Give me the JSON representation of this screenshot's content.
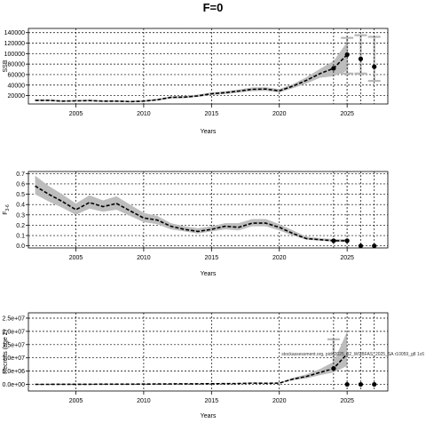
{
  "title": "F=0",
  "watermark": "stockassessment.org, pid=2025_02_WGBFAS_2025_SA r10059_g8 1c6",
  "colors": {
    "band": "#bdbdbd",
    "line": "#000000",
    "future_bar": "#b8b8b8",
    "grid": "#000000"
  },
  "chart_data": [
    {
      "type": "line",
      "name": "ssb-panel",
      "xlabel": "Years",
      "ylabel": "SSB",
      "xlim": [
        2001.5,
        2028
      ],
      "ylim": [
        4000,
        148000
      ],
      "xticks": [
        2005,
        2010,
        2015,
        2020,
        2025
      ],
      "yticks": [
        20000,
        40000,
        60000,
        80000,
        100000,
        120000,
        140000
      ],
      "ytick_labels": [
        "20000",
        "40000",
        "60000",
        "80000",
        "100000",
        "120000",
        "140000"
      ],
      "years": [
        2002,
        2003,
        2004,
        2005,
        2006,
        2007,
        2008,
        2009,
        2010,
        2011,
        2012,
        2013,
        2014,
        2015,
        2016,
        2017,
        2018,
        2019,
        2020,
        2021,
        2022,
        2023,
        2024,
        2025
      ],
      "estimate": [
        11000,
        11000,
        9500,
        10000,
        10500,
        9500,
        9500,
        8500,
        9500,
        12000,
        16500,
        17000,
        19500,
        23500,
        25500,
        28500,
        32000,
        32500,
        29000,
        38000,
        49000,
        62000,
        72000,
        98000
      ],
      "lower": [
        9500,
        9500,
        8000,
        8500,
        9000,
        8000,
        8000,
        7200,
        8000,
        10500,
        14500,
        15000,
        17500,
        21000,
        23000,
        25500,
        28500,
        29000,
        26000,
        34000,
        43000,
        54000,
        57000,
        67000
      ],
      "upper": [
        12500,
        12500,
        11000,
        11500,
        12000,
        11000,
        11000,
        10000,
        11000,
        13800,
        18500,
        19200,
        22000,
        26000,
        28200,
        31500,
        35500,
        36000,
        32500,
        42000,
        55000,
        71000,
        86000,
        122000
      ],
      "points": [
        {
          "x": 2024,
          "y": 72000
        },
        {
          "x": 2025,
          "y": 98000
        },
        {
          "x": 2026,
          "y": 90000
        },
        {
          "x": 2027,
          "y": 75000
        }
      ],
      "future": [
        {
          "x": 2025,
          "low": 62000,
          "high": 130000
        },
        {
          "x": 2026,
          "low": 62000,
          "high": 135000
        },
        {
          "x": 2027,
          "low": 48000,
          "high": 132000
        }
      ]
    },
    {
      "type": "line",
      "name": "f-panel",
      "xlabel": "Years",
      "ylabel": "F3-6",
      "ylabel_main": "F",
      "ylabel_sub": "3-6",
      "xlim": [
        2001.5,
        2028
      ],
      "ylim": [
        -0.02,
        0.72
      ],
      "xticks": [
        2005,
        2010,
        2015,
        2020,
        2025
      ],
      "yticks": [
        0.0,
        0.1,
        0.2,
        0.3,
        0.4,
        0.5,
        0.6,
        0.7
      ],
      "ytick_labels": [
        "0.0",
        "0.1",
        "0.2",
        "0.3",
        "0.4",
        "0.5",
        "0.6",
        "0.7"
      ],
      "years": [
        2002,
        2003,
        2004,
        2005,
        2006,
        2007,
        2008,
        2009,
        2010,
        2011,
        2012,
        2013,
        2014,
        2015,
        2016,
        2017,
        2018,
        2019,
        2020,
        2021,
        2022,
        2023,
        2024,
        2025
      ],
      "estimate": [
        0.58,
        0.5,
        0.43,
        0.35,
        0.42,
        0.38,
        0.41,
        0.34,
        0.27,
        0.25,
        0.19,
        0.16,
        0.14,
        0.16,
        0.19,
        0.18,
        0.22,
        0.22,
        0.18,
        0.12,
        0.07,
        0.06,
        0.05,
        0.05
      ],
      "lower": [
        0.5,
        0.43,
        0.37,
        0.3,
        0.36,
        0.33,
        0.35,
        0.29,
        0.23,
        0.21,
        0.16,
        0.14,
        0.12,
        0.14,
        0.16,
        0.15,
        0.19,
        0.19,
        0.15,
        0.1,
        0.06,
        0.05,
        0.04,
        0.04
      ],
      "upper": [
        0.68,
        0.58,
        0.5,
        0.41,
        0.49,
        0.44,
        0.48,
        0.4,
        0.32,
        0.29,
        0.22,
        0.19,
        0.17,
        0.19,
        0.22,
        0.22,
        0.26,
        0.26,
        0.21,
        0.15,
        0.09,
        0.075,
        0.065,
        0.065
      ],
      "points": [
        {
          "x": 2024,
          "y": 0.05
        },
        {
          "x": 2025,
          "y": 0.05
        },
        {
          "x": 2026,
          "y": 0.0
        },
        {
          "x": 2027,
          "y": 0.0
        }
      ],
      "future": []
    },
    {
      "type": "line",
      "name": "recruitment-panel",
      "xlabel": "Years",
      "ylabel": "Recruits (age 2)",
      "xlim": [
        2001.5,
        2028
      ],
      "ylim": [
        -2500000,
        27000000
      ],
      "xticks": [
        2005,
        2010,
        2015,
        2020,
        2025
      ],
      "yticks": [
        0,
        5000000,
        10000000,
        15000000,
        20000000,
        25000000
      ],
      "ytick_labels": [
        "0.0e+00",
        "5.0e+06",
        "1.0e+07",
        "1.5e+07",
        "2.0e+07",
        "2.5e+07"
      ],
      "years": [
        2002,
        2003,
        2004,
        2005,
        2006,
        2007,
        2008,
        2009,
        2010,
        2011,
        2012,
        2013,
        2014,
        2015,
        2016,
        2017,
        2018,
        2019,
        2020,
        2021,
        2022,
        2023,
        2024,
        2025
      ],
      "estimate": [
        30000,
        30000,
        40000,
        50000,
        60000,
        70000,
        80000,
        90000,
        120000,
        150000,
        180000,
        200000,
        220000,
        250000,
        280000,
        300000,
        500000,
        400000,
        500000,
        2000000,
        3000000,
        4500000,
        6000000,
        11500000
      ],
      "lower": [
        20000,
        20000,
        30000,
        40000,
        50000,
        55000,
        60000,
        70000,
        90000,
        110000,
        130000,
        150000,
        170000,
        190000,
        210000,
        230000,
        380000,
        300000,
        380000,
        1600000,
        2300000,
        3500000,
        4500000,
        7000000
      ],
      "upper": [
        45000,
        45000,
        55000,
        65000,
        75000,
        90000,
        100000,
        110000,
        150000,
        190000,
        230000,
        260000,
        280000,
        320000,
        360000,
        390000,
        650000,
        520000,
        650000,
        2500000,
        3800000,
        5800000,
        8500000,
        20000000
      ],
      "points": [
        {
          "x": 2024,
          "y": 6000000
        },
        {
          "x": 2025,
          "y": 0
        },
        {
          "x": 2026,
          "y": 0
        },
        {
          "x": 2027,
          "y": 0
        }
      ],
      "future": [
        {
          "x": 2024,
          "low": 6000000,
          "high": 17000000
        },
        {
          "x": 2025,
          "low": 0,
          "high": 0
        },
        {
          "x": 2026,
          "low": 0,
          "high": 0
        },
        {
          "x": 2027,
          "low": 0,
          "high": 0
        }
      ]
    }
  ]
}
